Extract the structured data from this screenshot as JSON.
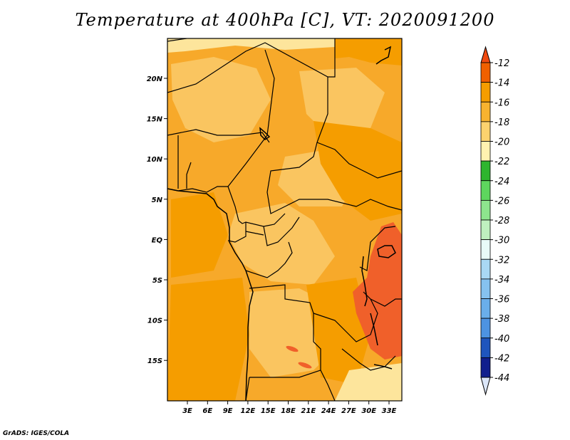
{
  "title": "Temperature at 400hPa [C], VT: 2020091200",
  "credit": "GrADS: IGES/COLA",
  "x_ticks": [
    "3E",
    "6E",
    "9E",
    "12E",
    "15E",
    "18E",
    "21E",
    "24E",
    "27E",
    "30E",
    "33E"
  ],
  "y_ticks": [
    "20N",
    "15N",
    "10N",
    "5N",
    "EQ",
    "5S",
    "10S",
    "15S"
  ],
  "colorbar": {
    "labels": [
      "-12",
      "-14",
      "-16",
      "-18",
      "-20",
      "-22",
      "-24",
      "-26",
      "-28",
      "-30",
      "-32",
      "-34",
      "-36",
      "-38",
      "-40",
      "-42",
      "-44"
    ],
    "colors": [
      "#f06000",
      "#f59d00",
      "#f8b32f",
      "#fcd26e",
      "#fff2b0",
      "#2eb52e",
      "#5ed65e",
      "#8de58d",
      "#bff0bf",
      "#e8fbf8",
      "#a9d8f4",
      "#86c2ef",
      "#6aaeea",
      "#4d93e2",
      "#3575d5",
      "#1f55bd",
      "#111f8d"
    ],
    "top_arrow_color": "#f04a10",
    "bottom_arrow_color": "#dbe6f8"
  },
  "field_colors": {
    "base": "#f7a92a",
    "light": "#fac560",
    "pale": "#fde59c",
    "warm": "#f08a00",
    "hot": "#f0602a"
  }
}
